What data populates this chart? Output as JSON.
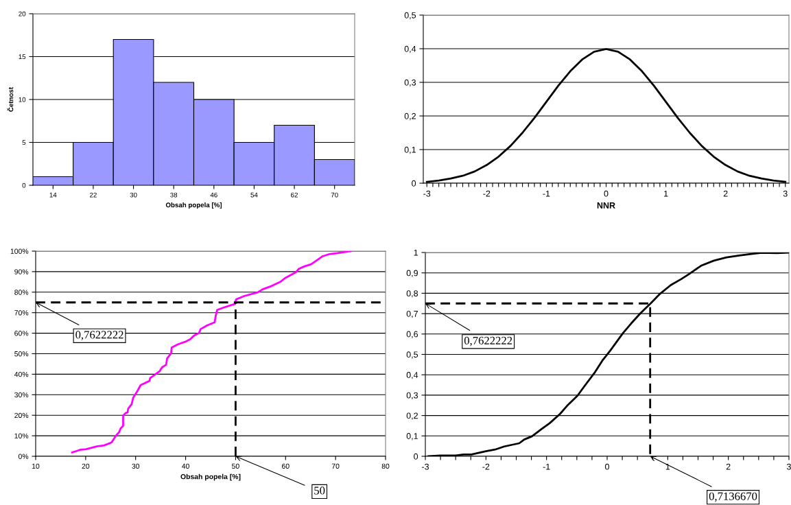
{
  "chart_data": [
    {
      "type": "bar",
      "xlabel": "Obsah popela [%]",
      "ylabel": "Četnost",
      "categories": [
        "14",
        "22",
        "30",
        "38",
        "46",
        "54",
        "62",
        "70"
      ],
      "values": [
        1,
        5,
        17,
        12,
        10,
        5,
        7,
        3
      ],
      "color": "#9999ff",
      "ylim": [
        0,
        20
      ],
      "yticks": [
        0,
        5,
        10,
        15,
        20
      ],
      "grid": "y"
    },
    {
      "type": "line",
      "xlabel": "NNR",
      "x": [
        -3,
        -2.8,
        -2.6,
        -2.4,
        -2.2,
        -2,
        -1.8,
        -1.6,
        -1.4,
        -1.2,
        -1,
        -0.8,
        -0.6,
        -0.4,
        -0.2,
        0,
        0.2,
        0.4,
        0.6,
        0.8,
        1,
        1.2,
        1.4,
        1.6,
        1.8,
        2,
        2.2,
        2.4,
        2.6,
        2.8,
        3
      ],
      "series": [
        {
          "color": "#000000",
          "values": [
            0.004,
            0.008,
            0.014,
            0.022,
            0.035,
            0.054,
            0.079,
            0.111,
            0.15,
            0.194,
            0.242,
            0.29,
            0.333,
            0.368,
            0.391,
            0.399,
            0.391,
            0.368,
            0.333,
            0.29,
            0.242,
            0.194,
            0.15,
            0.111,
            0.079,
            0.054,
            0.035,
            0.022,
            0.014,
            0.008,
            0.004
          ]
        }
      ],
      "xlim": [
        -3.06,
        3.06
      ],
      "xticks": [
        -3,
        {
          "value": -2.9,
          "label": null
        },
        {
          "value": -2.8,
          "label": null
        },
        {
          "value": -2.7,
          "label": null
        },
        {
          "value": -2.6,
          "label": null
        },
        {
          "value": -2.5,
          "label": null
        },
        {
          "value": -2.4,
          "label": null
        },
        {
          "value": -2.3,
          "label": null
        },
        {
          "value": -2.2,
          "label": null
        },
        {
          "value": -2.1,
          "label": null
        },
        -2,
        {
          "value": -1.9,
          "label": null
        },
        {
          "value": -1.8,
          "label": null
        },
        {
          "value": -1.7,
          "label": null
        },
        {
          "value": -1.6,
          "label": null
        },
        {
          "value": -1.5,
          "label": null
        },
        {
          "value": -1.4,
          "label": null
        },
        {
          "value": -1.3,
          "label": null
        },
        {
          "value": -1.2,
          "label": null
        },
        {
          "value": -1.1,
          "label": null
        },
        -1,
        {
          "value": -0.9,
          "label": null
        },
        {
          "value": -0.8,
          "label": null
        },
        {
          "value": -0.7,
          "label": null
        },
        {
          "value": -0.6,
          "label": null
        },
        {
          "value": -0.5,
          "label": null
        },
        {
          "value": -0.4,
          "label": null
        },
        {
          "value": -0.3,
          "label": null
        },
        {
          "value": -0.2,
          "label": null
        },
        {
          "value": -0.1,
          "label": null
        },
        0,
        {
          "value": 0.1,
          "label": null
        },
        {
          "value": 0.2,
          "label": null
        },
        {
          "value": 0.3,
          "label": null
        },
        {
          "value": 0.4,
          "label": null
        },
        {
          "value": 0.5,
          "label": null
        },
        {
          "value": 0.6,
          "label": null
        },
        {
          "value": 0.7,
          "label": null
        },
        {
          "value": 0.8,
          "label": null
        },
        {
          "value": 0.9,
          "label": null
        },
        1,
        {
          "value": 1.1,
          "label": null
        },
        {
          "value": 1.2,
          "label": null
        },
        {
          "value": 1.3,
          "label": null
        },
        {
          "value": 1.4,
          "label": null
        },
        {
          "value": 1.5,
          "label": null
        },
        {
          "value": 1.6,
          "label": null
        },
        {
          "value": 1.7,
          "label": null
        },
        {
          "value": 1.8,
          "label": null
        },
        {
          "value": 1.9,
          "label": null
        },
        2,
        {
          "value": 2.1,
          "label": null
        },
        {
          "value": 2.2,
          "label": null
        },
        {
          "value": 2.3,
          "label": null
        },
        {
          "value": 2.4,
          "label": null
        },
        {
          "value": 2.5,
          "label": null
        },
        {
          "value": 2.6,
          "label": null
        },
        {
          "value": 2.7,
          "label": null
        },
        {
          "value": 2.8,
          "label": null
        },
        {
          "value": 2.9,
          "label": null
        },
        3
      ],
      "ylim": [
        0,
        0.5
      ],
      "yticks": [
        0,
        {
          "value": 0.1,
          "label": "0,1"
        },
        {
          "value": 0.2,
          "label": "0,2"
        },
        {
          "value": 0.3,
          "label": "0,3"
        },
        {
          "value": 0.4,
          "label": "0,4"
        },
        {
          "value": 0.5,
          "label": "0,5"
        }
      ],
      "grid": "y"
    },
    {
      "type": "line",
      "xlabel": "Obsah popela [%]",
      "series": [
        {
          "color": "#ff00ff",
          "x": [
            17.3,
            18.1,
            18.8,
            20.1,
            22.2,
            23.7,
            25.2,
            26.0,
            26.7,
            27.0,
            27.5,
            27.5,
            28.0,
            28.4,
            28.5,
            29.2,
            29.5,
            30.3,
            31.0,
            31.8,
            32.8,
            32.9,
            33.8,
            34.8,
            35.3,
            36.1,
            36.3,
            37.1,
            37.2,
            38.4,
            39.9,
            40.9,
            41.7,
            42.7,
            43.0,
            44.3,
            45.8,
            46.0,
            46.3,
            47.6,
            49.9,
            50.1,
            51.7,
            54.4,
            55.4,
            57.2,
            59.0,
            59.8,
            62.1,
            62.6,
            63.8,
            65.1,
            66.4,
            67.4,
            68.7,
            70.4,
            73.0
          ],
          "values": [
            1.9,
            2.5,
            3.1,
            3.5,
            4.8,
            5.3,
            6.8,
            9.9,
            11.8,
            13.6,
            14.9,
            19.8,
            21.1,
            21.4,
            23.2,
            25.4,
            28.5,
            31.6,
            34.7,
            35.6,
            36.8,
            38.2,
            39.7,
            41.5,
            43.4,
            44.6,
            47.7,
            50.2,
            53.0,
            54.5,
            55.8,
            57.0,
            58.9,
            60.1,
            62.0,
            63.8,
            65.3,
            68.2,
            71.3,
            72.5,
            74.3,
            76.5,
            78.1,
            79.9,
            81.4,
            83.0,
            85.1,
            86.7,
            89.8,
            91.3,
            92.6,
            93.6,
            95.8,
            97.5,
            98.5,
            99.0,
            100
          ]
        },
        {
          "color": "#000000",
          "x": [
            50,
            50
          ],
          "values": [
            0,
            75
          ],
          "line_style": "dashed"
        }
      ],
      "ref_lines": [
        {
          "axis": "y",
          "value": 75,
          "color": "#000000",
          "line_style": "dashed"
        }
      ],
      "annotations": [
        {
          "text": "0,7622222",
          "x": 10,
          "y": 75
        },
        {
          "text": "50",
          "x": 50,
          "y": 0
        }
      ],
      "xlim": [
        10,
        80
      ],
      "xticks": [
        10,
        20,
        30,
        40,
        50,
        60,
        70,
        80
      ],
      "ylim": [
        0,
        100
      ],
      "yticks": [
        {
          "value": 0,
          "label": "0%"
        },
        {
          "value": 10,
          "label": "10%"
        },
        {
          "value": 20,
          "label": "20%"
        },
        {
          "value": 30,
          "label": "30%"
        },
        {
          "value": 40,
          "label": "40%"
        },
        {
          "value": 50,
          "label": "50%"
        },
        {
          "value": 60,
          "label": "60%"
        },
        {
          "value": 70,
          "label": "70%"
        },
        {
          "value": 80,
          "label": "80%"
        },
        {
          "value": 90,
          "label": "90%"
        },
        {
          "value": 100,
          "label": "100%"
        }
      ],
      "grid": "y"
    },
    {
      "type": "line",
      "series": [
        {
          "color": "#000000",
          "x": [
            -2.95,
            -2.75,
            -2.5,
            -2.37,
            -2.24,
            -2.0,
            -1.85,
            -1.7,
            -1.45,
            -1.37,
            -1.24,
            -1.08,
            -0.95,
            -0.78,
            -0.66,
            -0.49,
            -0.37,
            -0.2,
            -0.08,
            0.05,
            0.26,
            0.4,
            0.55,
            0.72,
            0.86,
            1.05,
            1.22,
            1.34,
            1.55,
            1.76,
            1.97,
            2.18,
            2.38,
            2.55,
            2.8,
            3.0
          ],
          "values": [
            0,
            0.004,
            0.004,
            0.009,
            0.009,
            0.025,
            0.033,
            0.048,
            0.064,
            0.082,
            0.098,
            0.134,
            0.162,
            0.207,
            0.248,
            0.297,
            0.346,
            0.413,
            0.469,
            0.518,
            0.604,
            0.653,
            0.702,
            0.751,
            0.794,
            0.84,
            0.869,
            0.892,
            0.935,
            0.96,
            0.976,
            0.985,
            0.993,
            0.999,
            0.997,
            1.0
          ]
        },
        {
          "color": "#000000",
          "x": [
            -3,
            0.71,
            0.71
          ],
          "values": [
            0.75,
            0.75,
            0
          ],
          "line_style": "dashed"
        }
      ],
      "annotations": [
        {
          "text": "0,7622222",
          "x": -3,
          "y": 0.75
        },
        {
          "text": "0,7136670",
          "x": 0.71,
          "y": 0
        }
      ],
      "xlim": [
        -3,
        3
      ],
      "xticks": [
        -3,
        {
          "value": -2.75,
          "label": null
        },
        {
          "value": -2.5,
          "label": null
        },
        {
          "value": -2.25,
          "label": null
        },
        -2,
        {
          "value": -1.75,
          "label": null
        },
        {
          "value": -1.5,
          "label": null
        },
        {
          "value": -1.25,
          "label": null
        },
        -1,
        {
          "value": -0.75,
          "label": null
        },
        {
          "value": -0.5,
          "label": null
        },
        {
          "value": -0.25,
          "label": null
        },
        0,
        {
          "value": 0.25,
          "label": null
        },
        {
          "value": 0.5,
          "label": null
        },
        {
          "value": 0.75,
          "label": null
        },
        1,
        {
          "value": 1.25,
          "label": null
        },
        {
          "value": 1.5,
          "label": null
        },
        {
          "value": 1.75,
          "label": null
        },
        2,
        {
          "value": 2.25,
          "label": null
        },
        {
          "value": 2.5,
          "label": null
        },
        {
          "value": 2.75,
          "label": null
        },
        3
      ],
      "ylim": [
        0,
        1
      ],
      "yticks": [
        0,
        {
          "value": 0.1,
          "label": "0,1"
        },
        {
          "value": 0.2,
          "label": "0,2"
        },
        {
          "value": 0.3,
          "label": "0,3"
        },
        {
          "value": 0.4,
          "label": "0,4"
        },
        {
          "value": 0.5,
          "label": "0,5"
        },
        {
          "value": 0.6,
          "label": "0,6"
        },
        {
          "value": 0.7,
          "label": "0,7"
        },
        {
          "value": 0.8,
          "label": "0,8"
        },
        {
          "value": 0.9,
          "label": "0,9"
        },
        1
      ],
      "grid": "y"
    }
  ]
}
